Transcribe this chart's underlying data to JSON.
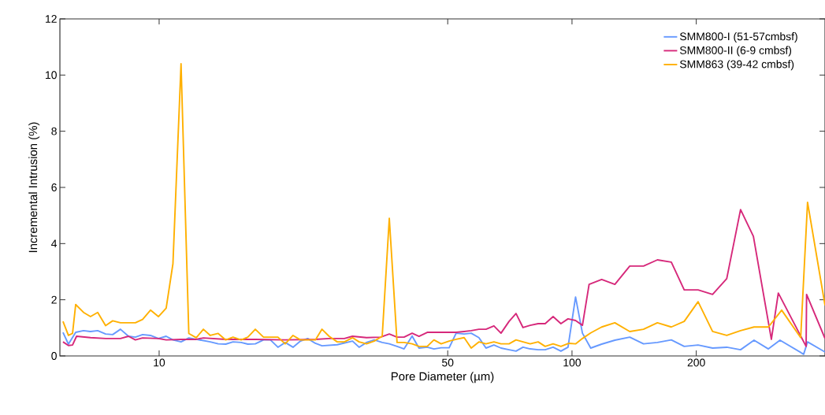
{
  "chart_data": {
    "type": "line",
    "xlabel": "Pore Diameter (µm)",
    "ylabel": "Incremental Intrusion (%)",
    "log": "x",
    "xlim": [
      5.75,
      410
    ],
    "ylim": [
      0,
      12
    ],
    "xticks": [
      10,
      50,
      100,
      200
    ],
    "yticks": [
      0,
      2,
      4,
      6,
      8,
      10,
      12
    ],
    "grid": false,
    "legend": "top right",
    "marker": "none",
    "line_style": "solid",
    "series": [
      {
        "name": "SMM800-I (51-57cmbsf)",
        "color": "#6699ff",
        "x": [
          5.85,
          6.03,
          6.28,
          6.56,
          6.82,
          7.1,
          7.42,
          7.72,
          8.06,
          8.43,
          8.76,
          9.12,
          9.53,
          9.96,
          10.4,
          10.8,
          11.3,
          11.8,
          12.3,
          13.3,
          13.9,
          14.5,
          15.1,
          15.8,
          16.4,
          17.1,
          17.9,
          18.6,
          19.4,
          20.2,
          21.1,
          22.0,
          22.9,
          23.9,
          24.8,
          27.0,
          29.4,
          30.5,
          31.8,
          33.2,
          34.7,
          36.1,
          37.7,
          39.2,
          41.0,
          42.6,
          44.6,
          46.3,
          48.2,
          50.4,
          52.4,
          54.8,
          57.0,
          59.5,
          61.9,
          64.7,
          67.3,
          70.4,
          73.2,
          76.1,
          79.2,
          82.8,
          86.1,
          90.0,
          94.0,
          97.8,
          102,
          106,
          111,
          118,
          127,
          138,
          149,
          161,
          174,
          187,
          202,
          219,
          237,
          256,
          276,
          299,
          319,
          364,
          372,
          410
        ],
        "values": [
          0.84,
          0.42,
          0.84,
          0.9,
          0.87,
          0.9,
          0.78,
          0.76,
          0.95,
          0.7,
          0.67,
          0.76,
          0.73,
          0.62,
          0.7,
          0.57,
          0.5,
          0.64,
          0.59,
          0.5,
          0.43,
          0.42,
          0.5,
          0.48,
          0.42,
          0.43,
          0.57,
          0.57,
          0.31,
          0.48,
          0.31,
          0.53,
          0.62,
          0.45,
          0.36,
          0.4,
          0.53,
          0.31,
          0.48,
          0.57,
          0.48,
          0.43,
          0.34,
          0.25,
          0.71,
          0.28,
          0.31,
          0.25,
          0.29,
          0.29,
          0.81,
          0.78,
          0.81,
          0.65,
          0.28,
          0.39,
          0.28,
          0.22,
          0.17,
          0.31,
          0.25,
          0.22,
          0.22,
          0.31,
          0.17,
          0.31,
          2.1,
          0.81,
          0.28,
          0.42,
          0.56,
          0.67,
          0.43,
          0.48,
          0.57,
          0.34,
          0.39,
          0.28,
          0.31,
          0.22,
          0.56,
          0.25,
          0.56,
          0.06,
          0.5,
          0.14
        ]
      },
      {
        "name": "SMM800-II (6-9 cmbsf)",
        "color": "#d6287a",
        "x": [
          5.85,
          6.03,
          6.17,
          6.31,
          6.82,
          7.42,
          8.06,
          8.43,
          8.76,
          9.12,
          9.96,
          10.4,
          11.3,
          12.3,
          12.8,
          14.5,
          17.1,
          20.2,
          23.9,
          25.8,
          28.1,
          29.4,
          31.8,
          34.4,
          36.1,
          37.7,
          39.2,
          41.0,
          42.6,
          44.6,
          48.2,
          52.4,
          54.8,
          57.0,
          59.5,
          61.9,
          64.7,
          67.3,
          70.4,
          73.2,
          76.1,
          79.2,
          82.8,
          86.1,
          90.0,
          94.0,
          97.8,
          102,
          106,
          110,
          118,
          127,
          138,
          149,
          161,
          174,
          187,
          202,
          219,
          237,
          256,
          275,
          304,
          316,
          369,
          370,
          410
        ],
        "values": [
          0.5,
          0.37,
          0.39,
          0.7,
          0.65,
          0.62,
          0.62,
          0.7,
          0.57,
          0.64,
          0.62,
          0.57,
          0.59,
          0.59,
          0.64,
          0.59,
          0.59,
          0.57,
          0.59,
          0.62,
          0.62,
          0.7,
          0.65,
          0.67,
          0.78,
          0.67,
          0.67,
          0.81,
          0.7,
          0.84,
          0.84,
          0.84,
          0.87,
          0.9,
          0.95,
          0.95,
          1.07,
          0.81,
          1.23,
          1.51,
          1.01,
          1.09,
          1.15,
          1.15,
          1.4,
          1.15,
          1.32,
          1.26,
          1.09,
          2.55,
          2.72,
          2.55,
          3.2,
          3.2,
          3.42,
          3.34,
          2.35,
          2.35,
          2.19,
          2.75,
          5.21,
          4.26,
          0.59,
          2.24,
          0.34,
          2.19,
          0.62
        ]
      },
      {
        "name": "SMM863 (39-42 cmbsf)",
        "color": "#ffb000",
        "x": [
          5.85,
          6.03,
          6.17,
          6.28,
          6.56,
          6.82,
          7.1,
          7.42,
          7.72,
          8.06,
          8.76,
          9.12,
          9.53,
          9.96,
          10.4,
          10.8,
          11.3,
          11.8,
          12.3,
          12.8,
          13.3,
          13.9,
          14.5,
          15.1,
          15.8,
          16.4,
          17.1,
          17.9,
          19.4,
          20.2,
          21.1,
          22.0,
          23.9,
          24.8,
          25.8,
          27.0,
          28.1,
          29.4,
          30.5,
          31.8,
          33.2,
          34.7,
          36.1,
          37.7,
          39.2,
          41.0,
          42.6,
          44.6,
          46.3,
          48.2,
          50.4,
          52.4,
          54.8,
          57.0,
          59.5,
          61.9,
          64.7,
          67.3,
          70.4,
          73.2,
          76.1,
          79.2,
          82.8,
          86.1,
          90.0,
          94.0,
          98.3,
          102,
          106,
          111,
          118,
          127,
          138,
          149,
          161,
          174,
          187,
          202,
          219,
          237,
          256,
          276,
          299,
          322,
          358,
          372,
          410
        ],
        "values": [
          1.23,
          0.73,
          0.8,
          1.83,
          1.55,
          1.4,
          1.55,
          1.08,
          1.25,
          1.18,
          1.18,
          1.3,
          1.63,
          1.4,
          1.7,
          3.28,
          10.4,
          0.8,
          0.65,
          0.95,
          0.73,
          0.8,
          0.57,
          0.67,
          0.57,
          0.67,
          0.95,
          0.67,
          0.67,
          0.43,
          0.73,
          0.57,
          0.57,
          0.95,
          0.7,
          0.5,
          0.5,
          0.65,
          0.5,
          0.43,
          0.53,
          0.7,
          4.9,
          0.48,
          0.48,
          0.43,
          0.34,
          0.34,
          0.57,
          0.43,
          0.53,
          0.59,
          0.65,
          0.28,
          0.5,
          0.43,
          0.5,
          0.43,
          0.43,
          0.57,
          0.5,
          0.43,
          0.5,
          0.34,
          0.43,
          0.34,
          0.45,
          0.43,
          0.62,
          0.82,
          1.03,
          1.18,
          0.87,
          0.95,
          1.18,
          1.03,
          1.23,
          1.93,
          0.87,
          0.73,
          0.9,
          1.03,
          1.03,
          1.63,
          0.65,
          5.47,
          1.8
        ]
      }
    ]
  }
}
